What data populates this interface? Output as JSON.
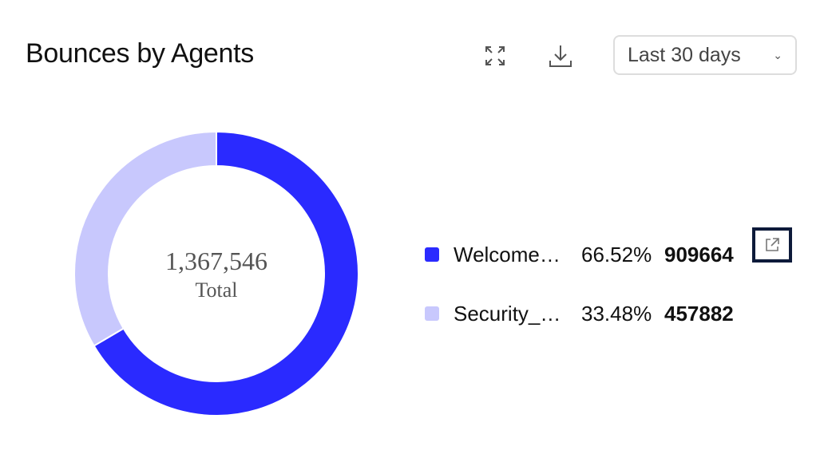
{
  "header": {
    "title": "Bounces by Agents",
    "expand_icon": "expand-icon",
    "download_icon": "download-icon",
    "range": "Last 30 days"
  },
  "chart_data": {
    "type": "pie",
    "title": "Bounces by Agents",
    "center_value": "1,367,546",
    "center_label": "Total",
    "categories": [
      "Welcome…",
      "Security_…"
    ],
    "values": [
      909664,
      457882
    ],
    "percents": [
      "66.52%",
      "33.48%"
    ],
    "value_labels": [
      "909664",
      "457882"
    ],
    "colors": [
      "#2a2aff",
      "#c8c8fd"
    ]
  }
}
